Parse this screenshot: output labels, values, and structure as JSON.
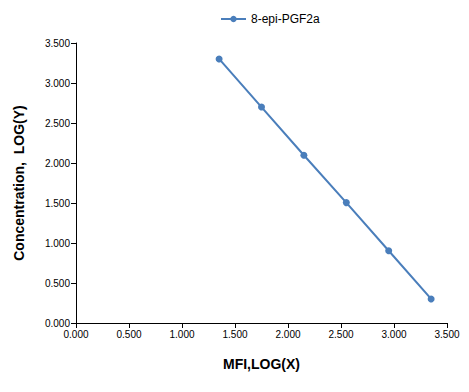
{
  "chart_data": {
    "type": "line",
    "x_label": "MFI,LOG(X)",
    "y_label": "Concentration,  LOG(Y)",
    "x": [
      1.35,
      1.75,
      2.15,
      2.55,
      2.95,
      3.35
    ],
    "series": [
      {
        "name": "8-epi-PGF2a",
        "color": "#4a7ebb",
        "values": [
          3.301,
          2.699,
          2.097,
          1.505,
          0.903,
          0.301
        ]
      }
    ],
    "xlim": [
      0,
      3.5
    ],
    "xticks": [
      {
        "value": 0,
        "label": "0.000"
      },
      {
        "value": 0.5,
        "label": "0.500"
      },
      {
        "value": 1,
        "label": "1.000"
      },
      {
        "value": 1.5,
        "label": "1.500"
      },
      {
        "value": 2,
        "label": "2.000"
      },
      {
        "value": 2.5,
        "label": "2.500"
      },
      {
        "value": 3,
        "label": "3.000"
      },
      {
        "value": 3.5,
        "label": "3.500"
      }
    ],
    "ylim": [
      0,
      3.5
    ],
    "yticks": [
      {
        "value": 0,
        "label": "0.000"
      },
      {
        "value": 0.5,
        "label": "0.500"
      },
      {
        "value": 1,
        "label": "1.000"
      },
      {
        "value": 1.5,
        "label": "1.500"
      },
      {
        "value": 2,
        "label": "2.000"
      },
      {
        "value": 2.5,
        "label": "2.500"
      },
      {
        "value": 3,
        "label": "3.000"
      },
      {
        "value": 3.5,
        "label": "3.500"
      }
    ],
    "grid": false,
    "legend": "top",
    "marker": "circle",
    "line_style": "solid"
  }
}
